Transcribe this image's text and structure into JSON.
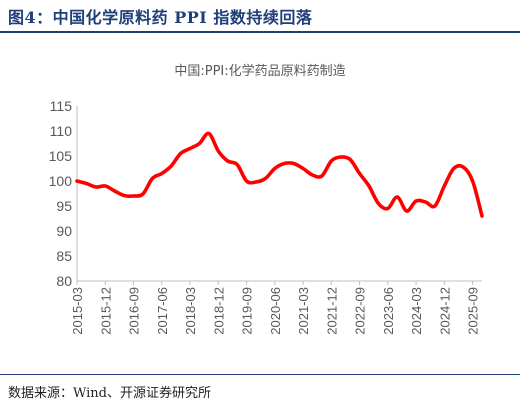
{
  "figure": {
    "header": "图4：中国化学原料药 PPI 指数持续回落",
    "source": "数据来源：Wind、开源证券研究所",
    "accent_color": "#1f3f7a"
  },
  "chart_data": {
    "type": "line",
    "title": "中国:PPI:化学药品原料药制造",
    "xlabel": "",
    "ylabel": "",
    "ylim": [
      80,
      115
    ],
    "y_ticks": [
      "80",
      "85",
      "90",
      "95",
      "100",
      "105",
      "110",
      "115"
    ],
    "x_tick_labels": [
      "2015-03",
      "2015-12",
      "2016-09",
      "2017-06",
      "2018-03",
      "2018-12",
      "2019-09",
      "2020-06",
      "2021-03",
      "2021-12",
      "2022-09",
      "2023-06",
      "2024-03",
      "2024-12",
      "2025-09"
    ],
    "grid": false,
    "legend": "none",
    "line_color": "#ff0000",
    "series": [
      {
        "x": [
          "2015-03",
          "2015-06",
          "2015-09",
          "2015-12",
          "2016-03",
          "2016-06",
          "2016-09",
          "2016-12",
          "2017-03",
          "2017-06",
          "2017-09",
          "2017-12",
          "2018-03",
          "2018-06",
          "2018-09",
          "2018-12",
          "2019-03",
          "2019-06",
          "2019-09",
          "2019-12",
          "2020-03",
          "2020-06",
          "2020-09",
          "2020-12",
          "2021-03",
          "2021-06",
          "2021-09",
          "2021-12",
          "2022-03",
          "2022-06",
          "2022-09",
          "2022-12",
          "2023-03",
          "2023-06",
          "2023-09",
          "2023-12",
          "2024-03",
          "2024-06",
          "2024-09",
          "2024-12",
          "2025-03",
          "2025-06",
          "2025-09",
          "2025-12"
        ],
        "values": [
          100.0,
          99.5,
          98.8,
          99.0,
          98.0,
          97.1,
          97.0,
          97.4,
          100.5,
          101.5,
          103.0,
          105.5,
          106.5,
          107.5,
          109.5,
          106.0,
          104.0,
          103.3,
          100.0,
          99.8,
          100.5,
          102.5,
          103.5,
          103.5,
          102.5,
          101.2,
          101.0,
          104.0,
          104.8,
          104.3,
          101.5,
          99.0,
          95.5,
          94.5,
          96.8,
          94.0,
          96.0,
          95.8,
          95.0,
          99.0,
          102.5,
          102.8,
          100.0,
          93.0
        ]
      }
    ]
  }
}
